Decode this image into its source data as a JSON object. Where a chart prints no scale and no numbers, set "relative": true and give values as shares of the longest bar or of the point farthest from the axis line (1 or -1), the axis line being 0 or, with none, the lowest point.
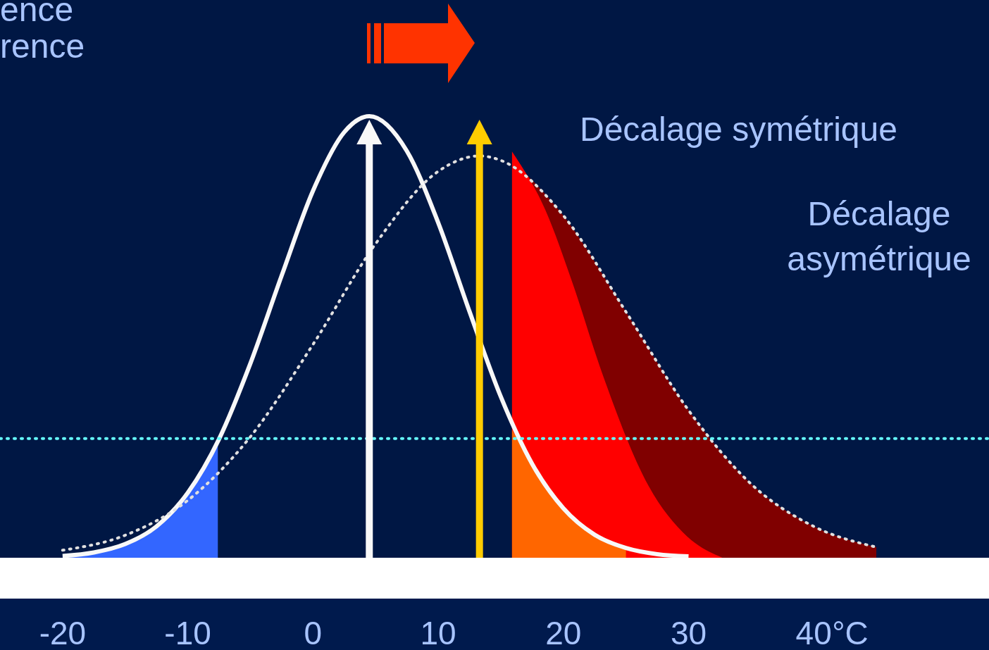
{
  "chart_data": {
    "type": "area",
    "relative": true,
    "xlim": [
      -25,
      54
    ],
    "xticks": [
      -20,
      -10,
      0,
      10,
      20,
      {
        "value": 30,
        "label": "30"
      },
      40
    ],
    "xlabel": "°C",
    "series": [
      {
        "color": "#800000",
        "x": [
          15.9,
          20,
          25,
          30,
          35,
          40,
          45
        ],
        "values": [
          0.9,
          0.775,
          0.557,
          0.334,
          0.167,
          0.071,
          0.024
        ]
      },
      {
        "color": "#ff0000",
        "x": [
          15.9,
          18.6,
          20.7,
          23.1,
          26.8,
          29.9,
          32.7
        ],
        "values": [
          0.92,
          0.785,
          0.625,
          0.418,
          0.163,
          0.048,
          0
        ]
      },
      {
        "color": "#ff6600",
        "x": [
          15.9,
          17.5,
          20,
          22.5,
          25
        ],
        "values": [
          0.29,
          0.213,
          0.112,
          0.052,
          0.022
        ]
      },
      {
        "color": "#3366ff",
        "x": [
          -20,
          -17.5,
          -15,
          -12.5,
          -10,
          -7.6
        ],
        "values": [
          0.004,
          0.012,
          0.031,
          0.071,
          0.147,
          0.265
        ]
      },
      {
        "type": "line",
        "color": "#f8f8f8",
        "line_style": "solid",
        "x": [
          -20,
          -17.5,
          -15,
          -12.5,
          -10,
          -7.5,
          -5,
          -2.5,
          0,
          2.5,
          4.5,
          7.5,
          10,
          12.5,
          15,
          17.5,
          20,
          22.5,
          25,
          27.5,
          30
        ],
        "values": [
          0.004,
          0.012,
          0.031,
          0.071,
          0.147,
          0.269,
          0.44,
          0.639,
          0.831,
          0.964,
          1,
          0.921,
          0.759,
          0.558,
          0.365,
          0.213,
          0.112,
          0.052,
          0.022,
          0.008,
          0.003
        ]
      },
      {
        "type": "line",
        "color": "#e0e0e0",
        "line_style": "dotted",
        "x": [
          -20,
          -15,
          -10,
          -5,
          0,
          5,
          10,
          13.3,
          15,
          20,
          25,
          30,
          35,
          40,
          45
        ],
        "values": [
          0.017,
          0.051,
          0.13,
          0.274,
          0.483,
          0.711,
          0.875,
          0.91,
          0.9,
          0.775,
          0.557,
          0.334,
          0.167,
          0.071,
          0.024
        ]
      }
    ],
    "ref_lines": [
      {
        "axis": "y",
        "value": 0.27,
        "color": "#66ffff",
        "line_style": "dotted"
      },
      {
        "axis": "x",
        "value": 4.5,
        "color": "#f8f8f8",
        "line_style": "solid"
      },
      {
        "axis": "x",
        "value": 13.3,
        "color": "#ffcc00",
        "line_style": "solid"
      }
    ],
    "annotations": [
      "ence",
      "rence",
      "Décalage symétrique",
      "Décalage\nasymétrique"
    ]
  }
}
